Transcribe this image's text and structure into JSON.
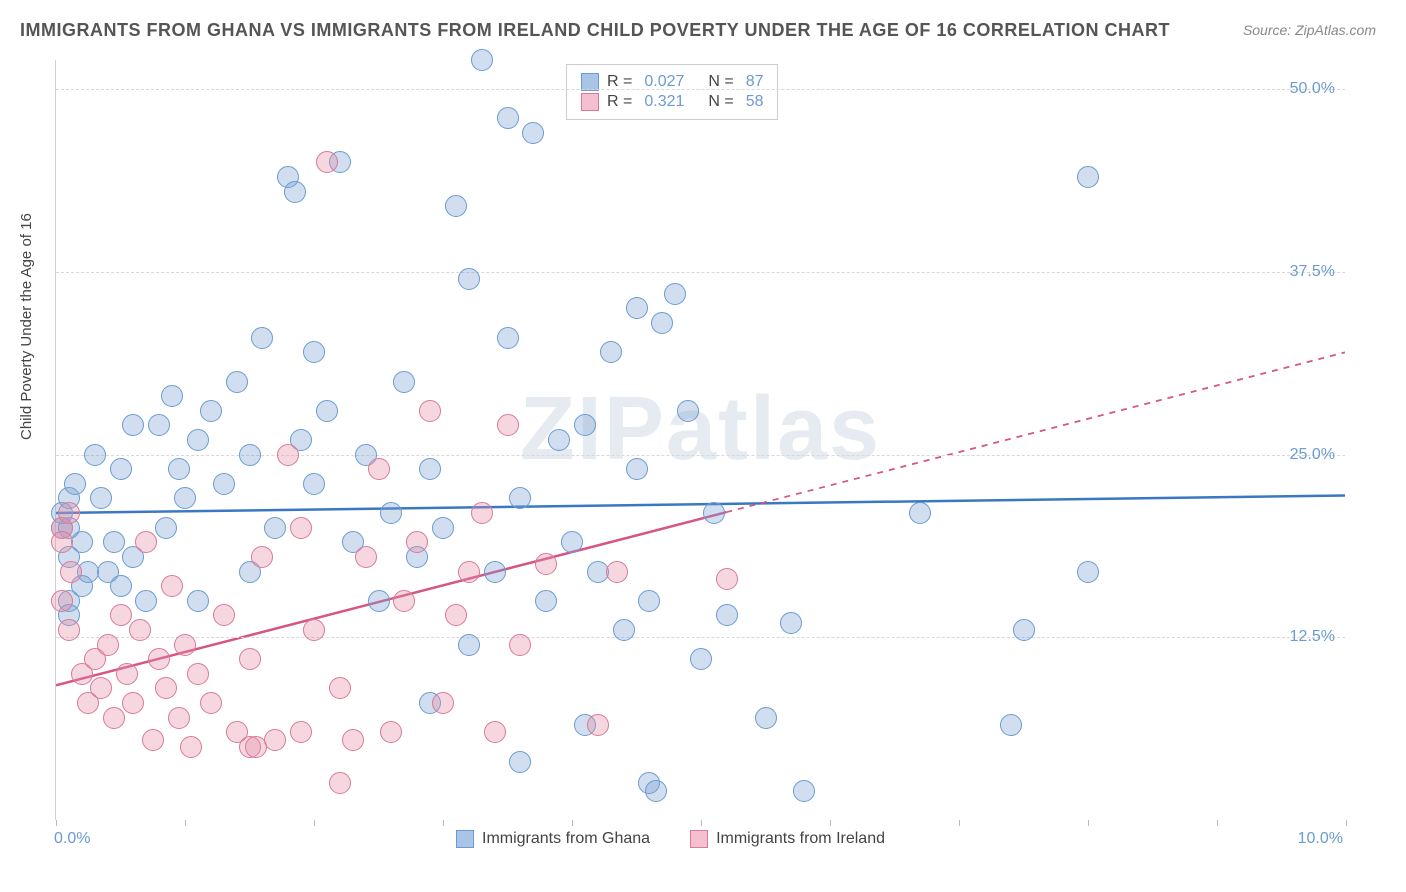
{
  "title": "IMMIGRANTS FROM GHANA VS IMMIGRANTS FROM IRELAND CHILD POVERTY UNDER THE AGE OF 16 CORRELATION CHART",
  "source": "Source: ZipAtlas.com",
  "y_axis_label": "Child Poverty Under the Age of 16",
  "watermark": "ZIPatlas",
  "x_range": [
    0,
    10
  ],
  "y_range": [
    0,
    52
  ],
  "y_ticks": [
    12.5,
    25.0,
    37.5,
    50.0
  ],
  "y_tick_labels": [
    "12.5%",
    "25.0%",
    "37.5%",
    "50.0%"
  ],
  "x_ticks": [
    0,
    1,
    2,
    3,
    4,
    5,
    6,
    7,
    8,
    9,
    10
  ],
  "x_axis_left_label": "0.0%",
  "x_axis_right_label": "10.0%",
  "grid_color": "#d8d8d8",
  "axis_color": "#d0d0d0",
  "tick_label_color": "#6b9bd2",
  "text_color": "#444444",
  "background_color": "#ffffff",
  "series": {
    "ghana": {
      "label": "Immigrants from Ghana",
      "color_fill": "rgba(120,160,210,0.35)",
      "color_stroke": "#6b9bd2",
      "swatch_fill": "#a8c5e8",
      "swatch_border": "#6b9bd2",
      "marker_radius": 11,
      "trend_color": "#3b78c4",
      "trend_width": 2.5,
      "trend": {
        "y_at_x0": 21.0,
        "y_at_x10": 22.2,
        "solid_until_x": 10.0
      },
      "R": "0.027",
      "N": "87",
      "points": [
        [
          0.05,
          20
        ],
        [
          0.05,
          21
        ],
        [
          0.1,
          22
        ],
        [
          0.1,
          18
        ],
        [
          0.1,
          15
        ],
        [
          0.1,
          20
        ],
        [
          0.1,
          14
        ],
        [
          0.15,
          23
        ],
        [
          0.2,
          16
        ],
        [
          0.2,
          19
        ],
        [
          0.25,
          17
        ],
        [
          0.3,
          25
        ],
        [
          0.35,
          22
        ],
        [
          0.4,
          17
        ],
        [
          0.45,
          19
        ],
        [
          0.5,
          16
        ],
        [
          0.5,
          24
        ],
        [
          0.6,
          18
        ],
        [
          0.6,
          27
        ],
        [
          0.7,
          15
        ],
        [
          0.8,
          27
        ],
        [
          0.85,
          20
        ],
        [
          0.9,
          29
        ],
        [
          0.95,
          24
        ],
        [
          1.0,
          22
        ],
        [
          1.1,
          26
        ],
        [
          1.1,
          15
        ],
        [
          1.2,
          28
        ],
        [
          1.3,
          23
        ],
        [
          1.4,
          30
        ],
        [
          1.5,
          25
        ],
        [
          1.5,
          17
        ],
        [
          1.6,
          33
        ],
        [
          1.7,
          20
        ],
        [
          1.8,
          44
        ],
        [
          1.85,
          43
        ],
        [
          1.9,
          26
        ],
        [
          2.0,
          32
        ],
        [
          2.0,
          23
        ],
        [
          2.1,
          28
        ],
        [
          2.2,
          45
        ],
        [
          2.3,
          19
        ],
        [
          2.4,
          25
        ],
        [
          2.5,
          15
        ],
        [
          2.6,
          21
        ],
        [
          2.7,
          30
        ],
        [
          2.8,
          18
        ],
        [
          2.9,
          24
        ],
        [
          2.9,
          8
        ],
        [
          3.0,
          20
        ],
        [
          3.1,
          42
        ],
        [
          3.2,
          12
        ],
        [
          3.2,
          37
        ],
        [
          3.3,
          52
        ],
        [
          3.4,
          17
        ],
        [
          3.5,
          48
        ],
        [
          3.5,
          33
        ],
        [
          3.6,
          22
        ],
        [
          3.6,
          4
        ],
        [
          3.7,
          47
        ],
        [
          3.8,
          15
        ],
        [
          3.9,
          26
        ],
        [
          4.0,
          19
        ],
        [
          4.1,
          27
        ],
        [
          4.1,
          6.5
        ],
        [
          4.2,
          17
        ],
        [
          4.3,
          32
        ],
        [
          4.4,
          13
        ],
        [
          4.5,
          35
        ],
        [
          4.5,
          24
        ],
        [
          4.6,
          2.5
        ],
        [
          4.6,
          15
        ],
        [
          4.65,
          2
        ],
        [
          4.7,
          34
        ],
        [
          4.8,
          36
        ],
        [
          4.9,
          28
        ],
        [
          5.0,
          11
        ],
        [
          5.1,
          21
        ],
        [
          5.2,
          14
        ],
        [
          5.5,
          7
        ],
        [
          5.7,
          13.5
        ],
        [
          5.8,
          2
        ],
        [
          6.7,
          21
        ],
        [
          7.4,
          6.5
        ],
        [
          7.5,
          13
        ],
        [
          8.0,
          44
        ],
        [
          8.0,
          17
        ]
      ]
    },
    "ireland": {
      "label": "Immigrants from Ireland",
      "color_fill": "rgba(230,140,165,0.35)",
      "color_stroke": "#d87a99",
      "swatch_fill": "#f4c0d0",
      "swatch_border": "#d87a99",
      "marker_radius": 11,
      "trend_color": "#d65584",
      "trend_width": 2.5,
      "trend": {
        "y_at_x0": 9.2,
        "y_at_x10": 32.0,
        "solid_until_x": 5.2
      },
      "R": "0.321",
      "N": "58",
      "points": [
        [
          0.05,
          20
        ],
        [
          0.05,
          15
        ],
        [
          0.05,
          19
        ],
        [
          0.1,
          13
        ],
        [
          0.1,
          21
        ],
        [
          0.12,
          17
        ],
        [
          0.2,
          10
        ],
        [
          0.25,
          8
        ],
        [
          0.3,
          11
        ],
        [
          0.35,
          9
        ],
        [
          0.4,
          12
        ],
        [
          0.45,
          7
        ],
        [
          0.5,
          14
        ],
        [
          0.55,
          10
        ],
        [
          0.6,
          8
        ],
        [
          0.65,
          13
        ],
        [
          0.7,
          19
        ],
        [
          0.75,
          5.5
        ],
        [
          0.8,
          11
        ],
        [
          0.85,
          9
        ],
        [
          0.9,
          16
        ],
        [
          0.95,
          7
        ],
        [
          1.0,
          12
        ],
        [
          1.05,
          5
        ],
        [
          1.1,
          10
        ],
        [
          1.2,
          8
        ],
        [
          1.3,
          14
        ],
        [
          1.4,
          6
        ],
        [
          1.5,
          11
        ],
        [
          1.5,
          5
        ],
        [
          1.55,
          5
        ],
        [
          1.6,
          18
        ],
        [
          1.7,
          5.5
        ],
        [
          1.8,
          25
        ],
        [
          1.9,
          6
        ],
        [
          1.9,
          20
        ],
        [
          2.0,
          13
        ],
        [
          2.1,
          45
        ],
        [
          2.2,
          9
        ],
        [
          2.2,
          2.5
        ],
        [
          2.3,
          5.5
        ],
        [
          2.4,
          18
        ],
        [
          2.5,
          24
        ],
        [
          2.6,
          6
        ],
        [
          2.7,
          15
        ],
        [
          2.8,
          19
        ],
        [
          2.9,
          28
        ],
        [
          3.0,
          8
        ],
        [
          3.1,
          14
        ],
        [
          3.2,
          17
        ],
        [
          3.3,
          21
        ],
        [
          3.4,
          6
        ],
        [
          3.5,
          27
        ],
        [
          3.6,
          12
        ],
        [
          3.8,
          17.5
        ],
        [
          4.2,
          6.5
        ],
        [
          4.35,
          17
        ],
        [
          5.2,
          16.5
        ]
      ]
    }
  },
  "legend_top_rows": [
    {
      "series": "ghana",
      "R_label": "R =",
      "N_label": "N ="
    },
    {
      "series": "ireland",
      "R_label": "R =",
      "N_label": "N ="
    }
  ]
}
